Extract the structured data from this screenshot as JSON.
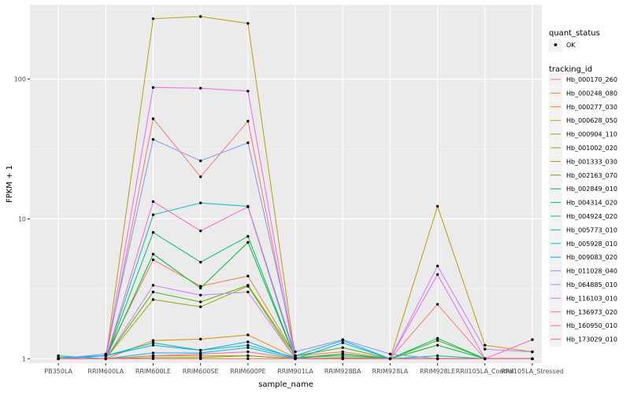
{
  "chart_data": {
    "type": "line",
    "xlabel": "sample_name",
    "ylabel": "FPKM + 1",
    "y_scale": "log10",
    "ylim": [
      0.93,
      340
    ],
    "y_ticks": [
      {
        "value": 1,
        "label": "1"
      },
      {
        "value": 10,
        "label": "10"
      },
      {
        "value": 100,
        "label": "100"
      }
    ],
    "categories": [
      "PB350LA",
      "RRIM600LA",
      "RRIM600LE",
      "RRIM600SE",
      "RRIM600PE",
      "RRIM901LA",
      "RRIM928BA",
      "RRIM928LA",
      "RRIM928LE",
      "RRII105LA_Control",
      "RRII105LA_Stressed"
    ],
    "legend_shape": {
      "title": "quant_status",
      "items": [
        {
          "label": "OK",
          "color": "#000000"
        }
      ]
    },
    "legend_color_title": "tracking_id",
    "series": [
      {
        "name": "Hb_000170_260",
        "color": "#F8766D",
        "values": [
          1.0,
          1.0,
          52.0,
          20.0,
          50.0,
          1.0,
          1.0,
          1.0,
          2.45,
          1.0,
          1.0
        ]
      },
      {
        "name": "Hb_000248_080",
        "color": "#EE8042",
        "values": [
          1.0,
          1.05,
          5.1,
          3.3,
          3.9,
          1.05,
          1.12,
          1.0,
          1.0,
          1.0,
          1.0
        ]
      },
      {
        "name": "Hb_000277_030",
        "color": "#DE8C00",
        "values": [
          1.0,
          1.0,
          1.35,
          1.38,
          1.48,
          1.02,
          1.08,
          1.0,
          1.0,
          1.0,
          1.0
        ]
      },
      {
        "name": "Hb_000628_050",
        "color": "#CD9600",
        "values": [
          1.0,
          1.0,
          1.05,
          1.05,
          1.05,
          1.0,
          1.02,
          1.0,
          1.0,
          1.0,
          1.0
        ]
      },
      {
        "name": "Hb_000904_110",
        "color": "#B79F00",
        "values": [
          1.0,
          1.0,
          270.0,
          280.0,
          250.0,
          1.0,
          1.0,
          1.0,
          12.3,
          1.25,
          1.12
        ]
      },
      {
        "name": "Hb_001002_020",
        "color": "#9DA700",
        "values": [
          1.0,
          1.0,
          2.65,
          2.35,
          3.3,
          1.0,
          1.0,
          1.0,
          1.0,
          1.0,
          1.0
        ]
      },
      {
        "name": "Hb_001333_030",
        "color": "#7CAE00",
        "values": [
          1.0,
          1.0,
          1.02,
          1.02,
          1.05,
          1.0,
          1.0,
          1.0,
          1.0,
          1.0,
          1.0
        ]
      },
      {
        "name": "Hb_002163_070",
        "color": "#49B500",
        "values": [
          1.0,
          1.0,
          3.0,
          2.55,
          3.35,
          1.05,
          1.2,
          1.0,
          1.35,
          1.0,
          1.0
        ]
      },
      {
        "name": "Hb_002849_010",
        "color": "#00BA38",
        "values": [
          1.0,
          1.0,
          5.6,
          3.2,
          6.8,
          1.0,
          1.08,
          1.0,
          1.25,
          1.0,
          1.0
        ]
      },
      {
        "name": "Hb_004314_020",
        "color": "#00BE67",
        "values": [
          1.0,
          1.0,
          8.0,
          4.9,
          7.5,
          1.0,
          1.0,
          1.0,
          1.4,
          1.0,
          1.0
        ]
      },
      {
        "name": "Hb_004924_020",
        "color": "#00C19A",
        "values": [
          1.02,
          1.05,
          1.3,
          1.15,
          1.25,
          1.02,
          1.05,
          1.0,
          1.05,
          1.0,
          1.0
        ]
      },
      {
        "name": "Hb_005773_010",
        "color": "#00BFC4",
        "values": [
          1.05,
          1.0,
          10.7,
          13.0,
          12.3,
          1.05,
          1.35,
          1.0,
          1.0,
          1.0,
          1.0
        ]
      },
      {
        "name": "Hb_005928_010",
        "color": "#00B8E7",
        "values": [
          1.0,
          1.0,
          1.1,
          1.1,
          1.2,
          1.0,
          1.0,
          1.0,
          1.0,
          1.0,
          1.0
        ]
      },
      {
        "name": "Hb_009083_020",
        "color": "#00A9FF",
        "values": [
          1.0,
          1.05,
          1.25,
          1.15,
          1.32,
          1.0,
          1.3,
          1.0,
          1.0,
          1.0,
          1.0
        ]
      },
      {
        "name": "Hb_011028_040",
        "color": "#8494FF",
        "values": [
          1.0,
          1.08,
          37.0,
          26.0,
          35.0,
          1.12,
          1.37,
          1.08,
          1.0,
          1.0,
          1.0
        ]
      },
      {
        "name": "Hb_064885_010",
        "color": "#C77CFF",
        "values": [
          1.0,
          1.0,
          3.35,
          2.85,
          3.0,
          1.0,
          1.0,
          1.0,
          4.6,
          1.17,
          1.12
        ]
      },
      {
        "name": "Hb_116103_010",
        "color": "#ED68ED",
        "values": [
          1.0,
          1.0,
          87.0,
          86.0,
          82.0,
          1.0,
          1.0,
          1.0,
          4.0,
          1.0,
          1.0
        ]
      },
      {
        "name": "Hb_136973_020",
        "color": "#FF61CC",
        "values": [
          1.0,
          1.0,
          13.3,
          8.2,
          12.2,
          1.0,
          1.0,
          1.0,
          1.0,
          1.0,
          1.37
        ]
      },
      {
        "name": "Hb_160950_010",
        "color": "#FF689F",
        "values": [
          1.0,
          1.0,
          1.05,
          1.08,
          1.12,
          1.0,
          1.0,
          1.0,
          1.0,
          1.0,
          1.0
        ]
      },
      {
        "name": "Hb_173029_010",
        "color": "#FB6F70",
        "values": [
          1.0,
          1.0,
          1.0,
          1.0,
          1.0,
          1.0,
          1.0,
          1.0,
          1.0,
          1.0,
          1.0
        ]
      }
    ]
  }
}
